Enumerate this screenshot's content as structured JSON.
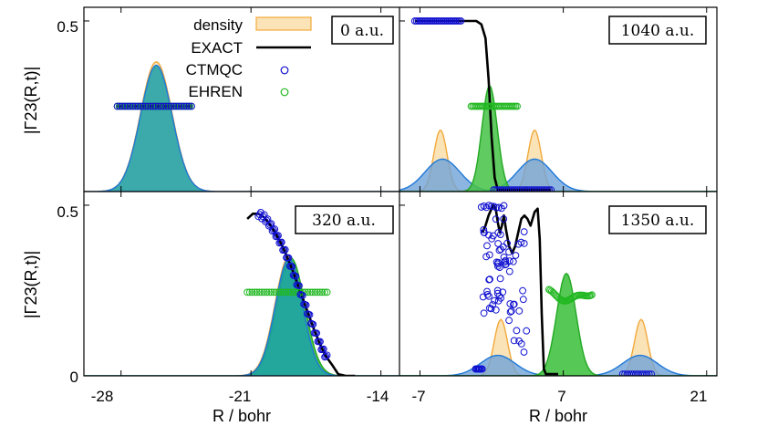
{
  "colors": {
    "density_fill": "#fbe3b8",
    "density_line": "#f2a93b",
    "blue_fill": "#6fa3d8",
    "blue_line": "#1f78d8",
    "green_fill": "#44c244",
    "green_line": "#22a822",
    "exact": "#000000",
    "ctmqc": "#1010d0",
    "ehren": "#22b822"
  },
  "chart_data": [
    {
      "type": "line",
      "panel": "top-left",
      "time_label": "0 a.u.",
      "xlim": [
        -30,
        -13
      ],
      "ylim": [
        0,
        0.54
      ],
      "ylabel": "|Γ23(R,t)|",
      "yticks": [
        "0.5"
      ],
      "legend": {
        "placement": "top-left",
        "entries": [
          "density",
          "EXACT",
          "CTMQC",
          "EHREN"
        ]
      },
      "series": [
        {
          "name": "density",
          "kind": "gaussian",
          "center": -26.1,
          "sigma": 0.85,
          "peak": 0.38
        },
        {
          "name": "EXACT",
          "x": [
            -28.2,
            -24.2
          ],
          "y": [
            0.25,
            0.25
          ]
        },
        {
          "name": "CTMQC",
          "x_range": [
            -28.2,
            -24.2
          ],
          "y": 0.25
        },
        {
          "name": "EHREN",
          "x_range": [
            -28.2,
            -24.2
          ],
          "y": 0.25
        }
      ],
      "fill_overlay": {
        "center": -26.1,
        "sigma": 0.85,
        "peak": 0.37
      }
    },
    {
      "type": "line",
      "panel": "top-right",
      "time_label": "1040 a.u.",
      "xlim": [
        -9,
        22
      ],
      "ylim": [
        0,
        0.54
      ],
      "series": [
        {
          "name": "density",
          "kind": "gaussians",
          "centers": [
            -5.0,
            4.2
          ],
          "sigma": 0.65,
          "peak": 0.18
        },
        {
          "name": "blue",
          "kind": "gaussians",
          "centers": [
            -4.8,
            4.2
          ],
          "sigma": 1.7,
          "peak": 0.095
        },
        {
          "name": "green",
          "kind": "gaussians",
          "centers": [
            -0.2
          ],
          "sigma": 0.75,
          "peak": 0.31
        },
        {
          "name": "EXACT",
          "x": [
            -7.5,
            -1.5,
            -1.0,
            -0.6,
            -0.3,
            0.0,
            0.3,
            0.6,
            5.8
          ],
          "y": [
            0.5,
            0.5,
            0.49,
            0.45,
            0.33,
            0.16,
            0.04,
            0.005,
            0.005
          ]
        },
        {
          "name": "CTMQC",
          "x_range": [
            -7.5,
            -3.0
          ],
          "y": 0.5,
          "x_range2": [
            0.2,
            5.8
          ],
          "y2": 0.005
        },
        {
          "name": "EHREN",
          "x_range": [
            -2.0,
            2.5
          ],
          "y": 0.25
        }
      ]
    },
    {
      "type": "line",
      "panel": "bottom-left",
      "time_label": "320 a.u.",
      "xlim": [
        -30,
        -13
      ],
      "ylim": [
        0,
        0.54
      ],
      "ylabel": "|Γ23(R,t)|",
      "yticks": [
        "0",
        "0.5"
      ],
      "xticks": [
        -28,
        -21,
        -14
      ],
      "xtick_labels": [
        "-28",
        "-21",
        "-14"
      ],
      "xlabel": "R / bohr",
      "series": [
        {
          "name": "density",
          "kind": "gaussian",
          "center": -18.95,
          "sigma": 0.75,
          "peak": 0.35
        },
        {
          "name": "green",
          "kind": "gaussian",
          "center": -18.85,
          "sigma": 0.75,
          "peak": 0.345
        },
        {
          "name": "EXACT",
          "x": [
            -21.2,
            -20.9,
            -20.6,
            -20.3,
            -20.0,
            -19.7,
            -19.4,
            -19.1,
            -18.8,
            -18.5,
            -18.2,
            -17.9,
            -17.6,
            -17.3,
            -17.0,
            -16.6,
            -16.3,
            -15.9,
            -15.4
          ],
          "y": [
            0.46,
            0.475,
            0.475,
            0.465,
            0.445,
            0.42,
            0.39,
            0.355,
            0.315,
            0.27,
            0.225,
            0.18,
            0.135,
            0.095,
            0.06,
            0.03,
            0.005,
            0.0,
            0.0
          ]
        },
        {
          "name": "CTMQC",
          "x_range": [
            -20.6,
            -16.9
          ],
          "follows": "EXACT"
        },
        {
          "name": "EHREN",
          "x_range": [
            -21.2,
            -16.9
          ],
          "y": 0.245
        }
      ]
    },
    {
      "type": "line",
      "panel": "bottom-right",
      "time_label": "1350 a.u.",
      "xlim": [
        -9,
        22
      ],
      "ylim": [
        0,
        0.54
      ],
      "xticks": [
        -7,
        7,
        21
      ],
      "xtick_labels": [
        "-7",
        "7",
        "21"
      ],
      "xlabel": "R / bohr",
      "series": [
        {
          "name": "density",
          "kind": "gaussians",
          "centers": [
            0.9,
            14.6
          ],
          "sigma": 0.65,
          "peak": 0.165
        },
        {
          "name": "blue",
          "kind": "gaussians",
          "centers": [
            0.6,
            14.5
          ],
          "sigma": 1.7,
          "peak": 0.06
        },
        {
          "name": "green",
          "kind": "gaussians",
          "centers": [
            7.3
          ],
          "sigma": 0.95,
          "peak": 0.3
        },
        {
          "name": "EXACT",
          "x": [
            -0.9,
            -0.6,
            -0.3,
            0.0,
            0.2,
            0.4,
            0.6,
            0.8,
            1.0,
            1.2,
            1.4,
            1.7,
            2.0,
            2.3,
            2.6,
            2.9,
            3.2,
            3.5,
            3.8,
            4.2,
            4.5,
            4.7,
            4.9,
            5.1,
            5.3,
            5.6,
            6.5
          ],
          "y": [
            0.42,
            0.44,
            0.47,
            0.49,
            0.5,
            0.49,
            0.45,
            0.42,
            0.44,
            0.47,
            0.43,
            0.38,
            0.36,
            0.38,
            0.42,
            0.46,
            0.47,
            0.46,
            0.44,
            0.48,
            0.49,
            0.4,
            0.18,
            0.02,
            0.005,
            0.005,
            0.005
          ]
        },
        {
          "name": "CTMQC",
          "note": "scattered cluster x≈-1.5..3.5, plus zero-line x≈13..15.6"
        },
        {
          "name": "EHREN",
          "x_range": [
            5.6,
            9.8
          ],
          "peak_y": 0.24
        }
      ]
    }
  ]
}
